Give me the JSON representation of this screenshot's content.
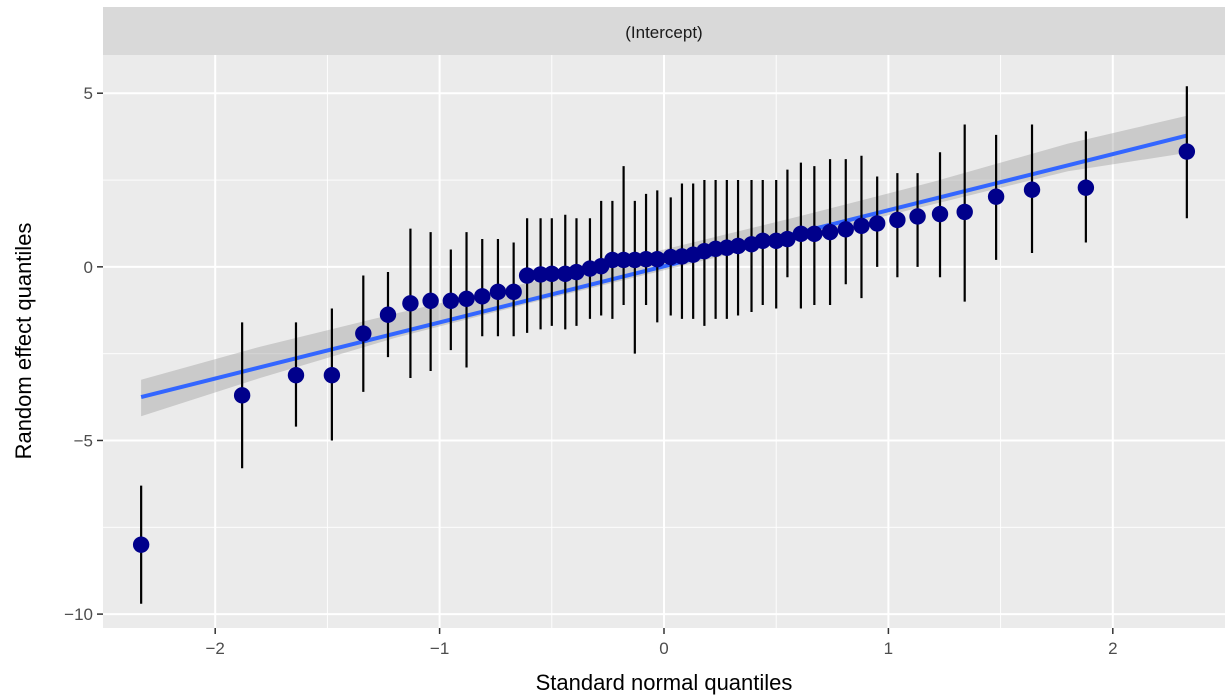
{
  "chart_data": {
    "type": "scatter",
    "facet_label": "(Intercept)",
    "xlabel": "Standard normal quantiles",
    "ylabel": "Random effect quantiles",
    "xlim": [
      -2.5,
      2.5
    ],
    "ylim": [
      -10.4,
      6.1
    ],
    "x_ticks": [
      -2,
      -1,
      0,
      1,
      2
    ],
    "x_tick_labels": [
      "−2",
      "−1",
      "0",
      "1",
      "2"
    ],
    "y_ticks": [
      -10,
      -5,
      0,
      5
    ],
    "y_tick_labels": [
      "−10",
      "−5",
      "0",
      "5"
    ],
    "grid": true,
    "colors": {
      "point": "#00008B",
      "errorbar": "#000000",
      "fit_line": "#3366FF",
      "ribbon": "#999999",
      "panel_bg": "#EBEBEB",
      "strip_bg": "#D9D9D9",
      "grid": "#FFFFFF"
    },
    "fit_line": {
      "x": [
        -2.33,
        2.33
      ],
      "y": [
        -3.75,
        3.78
      ]
    },
    "confidence_band": {
      "x": [
        -2.33,
        -1.8,
        -1.2,
        -0.6,
        0,
        0.6,
        1.2,
        1.8,
        2.33
      ],
      "lower": [
        -4.3,
        -3.2,
        -2.05,
        -1.05,
        -0.1,
        0.85,
        1.8,
        2.75,
        3.28
      ],
      "upper": [
        -3.25,
        -2.3,
        -1.35,
        -0.45,
        0.5,
        1.45,
        2.45,
        3.55,
        4.35
      ]
    },
    "points": {
      "x": [
        -2.33,
        -1.88,
        -1.64,
        -1.48,
        -1.34,
        -1.23,
        -1.13,
        -1.04,
        -0.95,
        -0.88,
        -0.81,
        -0.74,
        -0.67,
        -0.61,
        -0.55,
        -0.5,
        -0.44,
        -0.39,
        -0.33,
        -0.28,
        -0.23,
        -0.18,
        -0.13,
        -0.08,
        -0.03,
        0.03,
        0.08,
        0.13,
        0.18,
        0.23,
        0.28,
        0.33,
        0.39,
        0.44,
        0.5,
        0.55,
        0.61,
        0.67,
        0.74,
        0.81,
        0.88,
        0.95,
        1.04,
        1.13,
        1.23,
        1.34,
        1.48,
        1.64,
        1.88,
        2.33
      ],
      "y": [
        -8.0,
        -3.7,
        -3.12,
        -3.12,
        -1.92,
        -1.38,
        -1.05,
        -0.98,
        -0.98,
        -0.92,
        -0.85,
        -0.72,
        -0.72,
        -0.25,
        -0.22,
        -0.2,
        -0.2,
        -0.15,
        -0.05,
        0.02,
        0.2,
        0.2,
        0.2,
        0.22,
        0.22,
        0.28,
        0.3,
        0.35,
        0.45,
        0.52,
        0.55,
        0.6,
        0.65,
        0.75,
        0.75,
        0.8,
        0.95,
        0.95,
        1.0,
        1.08,
        1.18,
        1.25,
        1.35,
        1.45,
        1.52,
        1.58,
        2.02,
        2.22,
        2.28,
        3.32
      ],
      "lower": [
        -9.7,
        -5.8,
        -4.6,
        -5.0,
        -3.6,
        -2.6,
        -3.2,
        -3.0,
        -2.4,
        -2.9,
        -2.0,
        -2.0,
        -2.0,
        -1.9,
        -1.8,
        -1.7,
        -1.8,
        -1.7,
        -1.5,
        -1.4,
        -1.5,
        -1.1,
        -2.5,
        -1.1,
        -1.6,
        -1.4,
        -1.5,
        -1.5,
        -1.7,
        -1.5,
        -1.5,
        -1.4,
        -1.3,
        -1.1,
        -1.2,
        -0.3,
        -1.2,
        -1.1,
        -1.1,
        -0.5,
        -0.9,
        0.0,
        -0.3,
        0.0,
        -0.3,
        -1.0,
        0.2,
        0.4,
        0.7,
        1.4
      ],
      "upper": [
        -6.3,
        -1.6,
        -1.6,
        -1.2,
        -0.25,
        -0.15,
        1.1,
        1.0,
        0.5,
        1.0,
        0.8,
        0.8,
        0.7,
        1.4,
        1.4,
        1.4,
        1.5,
        1.4,
        1.4,
        1.9,
        1.9,
        2.9,
        1.9,
        2.1,
        2.2,
        2.0,
        2.4,
        2.4,
        2.5,
        2.5,
        2.5,
        2.5,
        2.5,
        2.5,
        2.5,
        2.8,
        3.0,
        2.9,
        3.1,
        3.1,
        3.2,
        2.6,
        2.7,
        2.7,
        3.3,
        4.1,
        3.8,
        4.1,
        3.9,
        5.2
      ]
    }
  }
}
